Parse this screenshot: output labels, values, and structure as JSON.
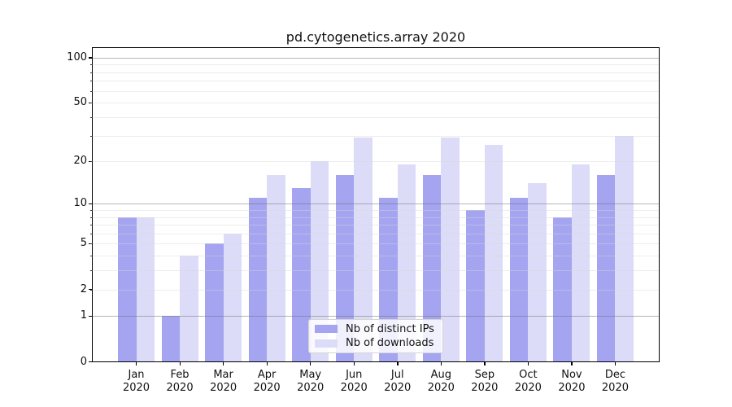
{
  "title": "pd.cytogenetics.array 2020",
  "chart_data": {
    "type": "bar",
    "title": "pd.cytogenetics.array 2020",
    "categories": [
      "Jan",
      "Feb",
      "Mar",
      "Apr",
      "May",
      "Jun",
      "Jul",
      "Aug",
      "Sep",
      "Oct",
      "Nov",
      "Dec"
    ],
    "x_year": "2020",
    "series": [
      {
        "name": "Nb of distinct IPs",
        "color": "#a4a4f1",
        "values": [
          8,
          1,
          5,
          11,
          13,
          16,
          11,
          16,
          9,
          11,
          8,
          16
        ]
      },
      {
        "name": "Nb of downloads",
        "color": "#dcdcf8",
        "values": [
          8,
          4,
          6,
          16,
          20,
          29,
          19,
          29,
          26,
          14,
          19,
          30
        ]
      }
    ],
    "yscale": "log1p",
    "ylim": [
      0,
      116
    ],
    "y_ticks": [
      0,
      1,
      2,
      5,
      10,
      20,
      50,
      100
    ],
    "y_major_gridlines": [
      1,
      10,
      100
    ],
    "y_minor_gridlines": [
      2,
      3,
      4,
      5,
      6,
      7,
      8,
      9,
      20,
      30,
      40,
      50,
      60,
      70,
      80,
      90
    ],
    "grid": true,
    "legend_position": "lower center",
    "xlabel": "",
    "ylabel": ""
  }
}
